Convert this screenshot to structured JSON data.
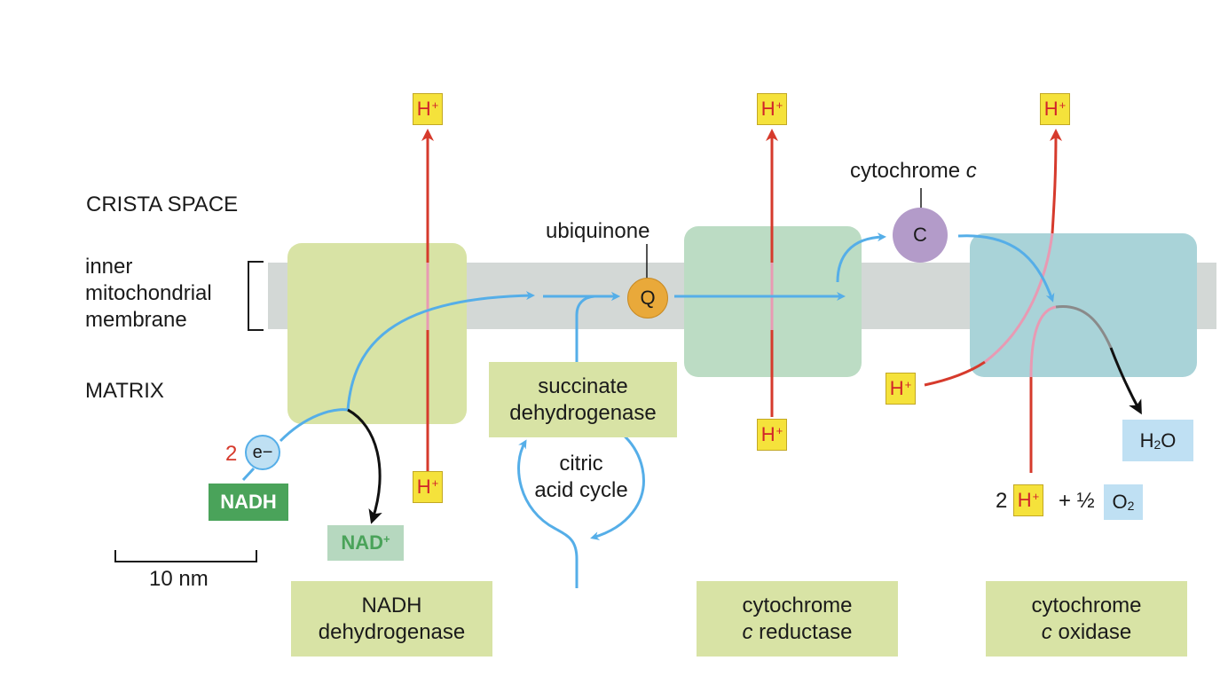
{
  "regions": {
    "crista_space": "CRISTA SPACE",
    "membrane_l1": "inner",
    "membrane_l2": "mitochondrial",
    "membrane_l3": "membrane",
    "matrix": "MATRIX"
  },
  "proton": {
    "h": "H",
    "plus": "+"
  },
  "ubiquinone": {
    "label": "ubiquinone",
    "symbol": "Q"
  },
  "cytochrome_c": {
    "label": "cytochrome ",
    "italic": "c",
    "symbol": "C"
  },
  "succinate": {
    "line1": "succinate",
    "line2": "dehydrogenase"
  },
  "citric": {
    "line1": "citric",
    "line2": "acid cycle"
  },
  "electrons": {
    "count": "2",
    "symbol": "e−"
  },
  "nadh": "NADH",
  "nad": {
    "text": "NAD",
    "plus": "+"
  },
  "water": {
    "h": "H",
    "sub": "2",
    "o": "O"
  },
  "oxygen_reaction": {
    "coef": "2",
    "plus_half": "+ ½",
    "o": "O",
    "sub": "2"
  },
  "scale": "10 nm",
  "complexes": {
    "nadh_dh": {
      "line1": "NADH",
      "line2": "dehydrogenase"
    },
    "reductase": {
      "line1": "cytochrome",
      "italic": "c",
      "rest": " reductase"
    },
    "oxidase": {
      "line1": "cytochrome",
      "italic": "c",
      "rest": " oxidase"
    }
  },
  "colors": {
    "membrane": "#d3d8d6",
    "complex1": "#d8e3a5",
    "complex3": "#bcdcc4",
    "complex4": "#a9d3d8",
    "label_box": "#d8e3a5",
    "electron_path": "#55aee8",
    "proton_red": "#d63a2c",
    "proton_pink": "#e89ab3",
    "h_box": "#f5e23b",
    "q": "#e9a93a",
    "cyt_c": "#b39bc9",
    "nadh_green": "#4aa35a",
    "nad_green": "#b6d8bf",
    "water_blue": "#bfe0f3"
  }
}
